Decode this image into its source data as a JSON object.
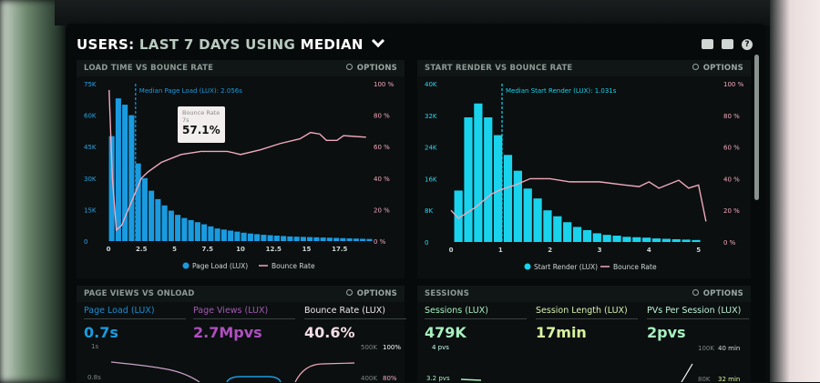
{
  "header": {
    "title_users": "USERS:",
    "title_period": "LAST 7 DAYS",
    "title_using": "USING",
    "title_stat": "MEDIAN",
    "icons": [
      "monitor-icon",
      "share-icon",
      "help-icon"
    ],
    "help_glyph": "?"
  },
  "colors": {
    "blue": "#1a9be0",
    "cyan": "#19d3ec",
    "pink": "#f1a9bd",
    "purple": "#b04fc0",
    "green": "#a8f0c0"
  },
  "panels": {
    "load": {
      "title": "LOAD TIME VS BOUNCE RATE",
      "options": "OPTIONS"
    },
    "render": {
      "title": "START RENDER VS BOUNCE RATE",
      "options": "OPTIONS"
    },
    "pageviews": {
      "title": "PAGE VIEWS VS ONLOAD",
      "options": "OPTIONS",
      "metrics": [
        {
          "label": "Page Load (LUX)",
          "value": "0.7s"
        },
        {
          "label": "Page Views (LUX)",
          "value": "2.7Mpvs"
        },
        {
          "label": "Bounce Rate (LUX)",
          "value": "40.6%"
        }
      ],
      "axis": {
        "l1": "1s",
        "l2": "0.8s",
        "r1a": "500K",
        "r1b": "100%",
        "r2a": "400K",
        "r2b": "80%"
      }
    },
    "sessions": {
      "title": "SESSIONS",
      "options": "OPTIONS",
      "metrics": [
        {
          "label": "Sessions (LUX)",
          "value": "479K"
        },
        {
          "label": "Session Length (LUX)",
          "value": "17min"
        },
        {
          "label": "PVs Per Session (LUX)",
          "value": "2pvs"
        }
      ],
      "axis": {
        "l1": "4 pvs",
        "l2": "3.2 pvs",
        "r1a": "100K",
        "r1b": "40 min",
        "r2a": "80K",
        "r2b": "32 min"
      }
    }
  },
  "tooltip": {
    "label": "Bounce Rate",
    "x": "7s",
    "value": "57.1%"
  },
  "chart_data": [
    {
      "type": "bar",
      "title": "LOAD TIME VS BOUNCE RATE",
      "annotation": "Median Page Load (LUX): 2.056s",
      "median": 2.056,
      "xlim": [
        0,
        20
      ],
      "xticks": [
        "0",
        "2.5",
        "5",
        "7.5",
        "10",
        "12.5",
        "15",
        "17.5"
      ],
      "xtick_values": [
        0,
        2.5,
        5,
        7.5,
        10,
        12.5,
        15,
        17.5
      ],
      "ylim": [
        0,
        75000
      ],
      "yticks": [
        "0",
        "15K",
        "30K",
        "45K",
        "60K",
        "75K"
      ],
      "y2lim": [
        0,
        100
      ],
      "y2ticks": [
        "0 %",
        "20 %",
        "40 %",
        "60 %",
        "80 %",
        "100 %"
      ],
      "legend": [
        "Page Load (LUX)",
        "Bounce Rate"
      ],
      "legend_position": "bottom",
      "bar_x": [
        0.25,
        0.75,
        1.25,
        1.75,
        2.25,
        2.75,
        3.25,
        3.75,
        4.25,
        4.75,
        5.25,
        5.75,
        6.25,
        6.75,
        7.25,
        7.75,
        8.25,
        8.75,
        9.25,
        9.75,
        10.25,
        10.75,
        11.25,
        11.75,
        12.25,
        12.75,
        13.25,
        13.75,
        14.25,
        14.75,
        15.25,
        15.75,
        16.25,
        16.75,
        17.25,
        17.75,
        18.25,
        18.75,
        19.25,
        19.75
      ],
      "bar_values": [
        50000,
        68000,
        65000,
        60000,
        37000,
        30000,
        24000,
        20000,
        17000,
        14500,
        12500,
        11000,
        10000,
        9000,
        8000,
        7000,
        6000,
        5500,
        5000,
        4500,
        4000,
        3600,
        3300,
        3000,
        2800,
        2600,
        2400,
        2200,
        2100,
        2000,
        1900,
        1800,
        1700,
        1600,
        1500,
        1400,
        1300,
        1200,
        1100,
        1000
      ],
      "line_x": [
        0.05,
        0.3,
        0.6,
        1,
        1.5,
        2,
        2.5,
        3,
        4,
        5.5,
        7,
        9,
        10,
        11.5,
        13,
        14.5,
        15.3,
        16,
        16.5,
        17.3,
        17.8,
        19.5
      ],
      "line_values": [
        96,
        40,
        7,
        10,
        20,
        30,
        40,
        44,
        50,
        55,
        57,
        57,
        55,
        58,
        62,
        65,
        69,
        68,
        64,
        64,
        67,
        66
      ]
    },
    {
      "type": "bar",
      "title": "START RENDER VS BOUNCE RATE",
      "annotation": "Median Start Render (LUX): 1.031s",
      "median": 1.031,
      "xlim": [
        0,
        5.3
      ],
      "xticks": [
        "0",
        "1",
        "2",
        "3",
        "4",
        "5"
      ],
      "xtick_values": [
        0,
        1,
        2,
        3,
        4,
        5
      ],
      "ylim": [
        0,
        40000
      ],
      "yticks": [
        "0",
        "8K",
        "16K",
        "24K",
        "32K",
        "40K"
      ],
      "y2lim": [
        0,
        100
      ],
      "y2ticks": [
        "0 %",
        "20 %",
        "40 %",
        "60 %",
        "80 %",
        "100 %"
      ],
      "legend": [
        "Start Render (LUX)",
        "Bounce Rate"
      ],
      "legend_position": "bottom",
      "bar_x": [
        0.15,
        0.35,
        0.55,
        0.75,
        0.95,
        1.15,
        1.35,
        1.55,
        1.75,
        1.95,
        2.15,
        2.35,
        2.55,
        2.75,
        2.95,
        3.15,
        3.35,
        3.55,
        3.75,
        3.95,
        4.15,
        4.35,
        4.55,
        4.75,
        4.95
      ],
      "bar_values": [
        13000,
        31500,
        35000,
        31500,
        27000,
        22000,
        18000,
        13500,
        11000,
        8000,
        6500,
        5000,
        3800,
        3000,
        2200,
        1800,
        1600,
        1300,
        1200,
        1100,
        900,
        800,
        700,
        600,
        500
      ],
      "line_x": [
        0,
        0.15,
        0.5,
        0.8,
        1,
        1.3,
        1.6,
        2,
        2.4,
        3,
        3.5,
        3.8,
        4,
        4.2,
        4.6,
        4.8,
        5,
        5.15
      ],
      "line_values": [
        20,
        15,
        22,
        30,
        33,
        36,
        40,
        40,
        38,
        38,
        36,
        35,
        38,
        34,
        39,
        34,
        36,
        13
      ]
    }
  ]
}
